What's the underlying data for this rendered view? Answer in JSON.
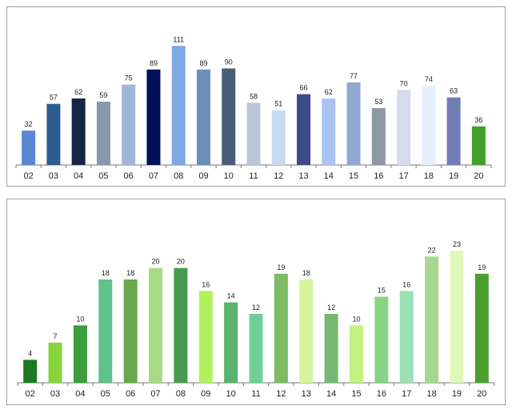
{
  "chart_data": [
    {
      "type": "bar",
      "title": "",
      "xlabel": "",
      "ylabel": "",
      "ylim": [
        0,
        115
      ],
      "grid": false,
      "categories": [
        "02",
        "03",
        "04",
        "05",
        "06",
        "07",
        "08",
        "09",
        "10",
        "11",
        "12",
        "13",
        "14",
        "15",
        "16",
        "17",
        "18",
        "19",
        "20"
      ],
      "values": [
        32,
        57,
        62,
        59,
        75,
        89,
        111,
        89,
        90,
        58,
        51,
        66,
        62,
        77,
        53,
        70,
        74,
        63,
        36
      ],
      "colors": [
        "#5b87d3",
        "#2d5b8f",
        "#132645",
        "#8a97ac",
        "#9eb7d8",
        "#00105a",
        "#7ea8e2",
        "#6d8dbb",
        "#4a5d78",
        "#b9c6d9",
        "#c8daf2",
        "#3b4b8a",
        "#a9c4f0",
        "#8fa9d0",
        "#8e97a6",
        "#d5dced",
        "#e6effc",
        "#707cb3",
        "#3fa12e"
      ]
    },
    {
      "type": "bar",
      "title": "",
      "xlabel": "",
      "ylabel": "",
      "ylim": [
        0,
        24
      ],
      "grid": false,
      "categories": [
        "02",
        "03",
        "04",
        "05",
        "06",
        "07",
        "08",
        "09",
        "10",
        "11",
        "12",
        "13",
        "14",
        "15",
        "16",
        "17",
        "18",
        "19",
        "20"
      ],
      "values": [
        4,
        7,
        10,
        18,
        18,
        20,
        20,
        16,
        14,
        12,
        19,
        18,
        12,
        10,
        15,
        16,
        22,
        23,
        19
      ],
      "colors": [
        "#1c7a22",
        "#88d43f",
        "#3c9e3c",
        "#5ec28a",
        "#69a84c",
        "#a8dc84",
        "#459a4e",
        "#b1f25c",
        "#58b46d",
        "#6fd09a",
        "#7cbc64",
        "#d6f4a0",
        "#74b874",
        "#c4f282",
        "#88d486",
        "#9ce0b8",
        "#a6d890",
        "#e0f8b6",
        "#4c9e2c"
      ]
    }
  ]
}
